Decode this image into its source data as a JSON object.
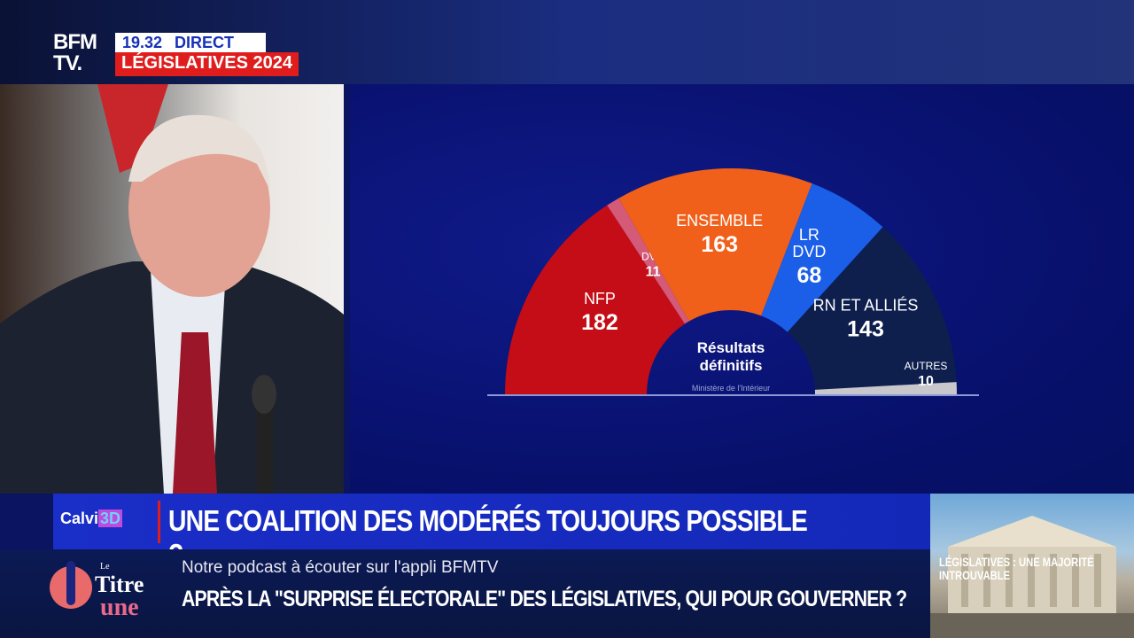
{
  "header": {
    "logo": "BFM TV.",
    "logo_line1": "BFM",
    "logo_line2": "TV.",
    "time": "19.32",
    "live": "DIRECT",
    "section": "LÉGISLATIVES 2024"
  },
  "chart_data": {
    "type": "hemicycle",
    "center_label_line1": "Résultats",
    "center_label_line2": "définitifs",
    "source": "Ministère de l'Intérieur",
    "series": [
      {
        "name": "NFP",
        "value": 182,
        "color": "#c50d17"
      },
      {
        "name": "DVG",
        "value": 11,
        "color": "#d45a78"
      },
      {
        "name": "ENSEMBLE",
        "value": 163,
        "color": "#f0601a"
      },
      {
        "name": "LR DVD",
        "value": 68,
        "color": "#1b5ee8"
      },
      {
        "name": "RN ET ALLIÉS",
        "value": 143,
        "color": "#0e1f4e"
      },
      {
        "name": "AUTRES",
        "value": 10,
        "color": "#c8c8cc"
      }
    ]
  },
  "lower_third": {
    "brand": "Calvi",
    "brand_3d": "3D",
    "headline": "UNE COALITION DES MODÉRÉS TOUJOURS POSSIBLE ?"
  },
  "ticker": {
    "podcast_logo": "Le Titre à la une",
    "line1": "Notre podcast à écouter sur l'appli BFMTV",
    "line2": "APRÈS LA \"SURPRISE ÉLECTORALE\" DES LÉGISLATIVES, QUI POUR GOUVERNER ?"
  },
  "thumbnail": {
    "text": "LÉGISLATIVES : UNE MAJORITÉ INTROUVABLE"
  }
}
